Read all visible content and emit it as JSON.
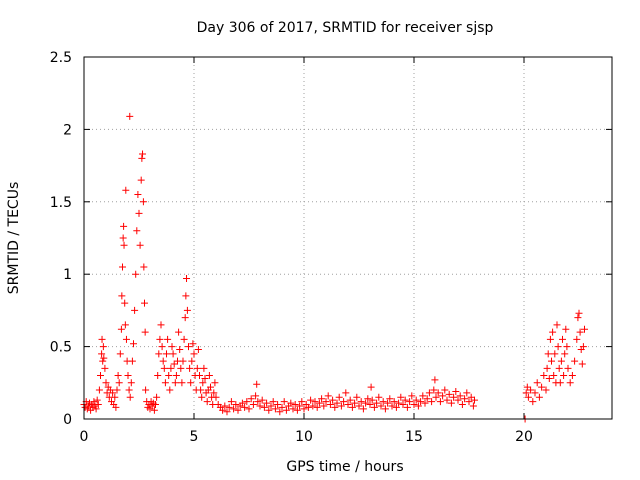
{
  "chart_data": {
    "type": "scatter",
    "title": "Day 306 of 2017, SRMTID for receiver sjsp",
    "xlabel": "GPS time / hours",
    "ylabel": "SRMTID / TECUs",
    "xlim": [
      0,
      24
    ],
    "ylim": [
      0,
      2.5
    ],
    "grid": true,
    "marker": "plus",
    "colors": {
      "series": "#ff0000",
      "grid": "#a0a0a0",
      "axis": "#000000"
    },
    "x_ticks": [
      {
        "value": 0,
        "label": "0"
      },
      {
        "value": 5,
        "label": "5"
      },
      {
        "value": 10,
        "label": "10"
      },
      {
        "value": 15,
        "label": "15"
      },
      {
        "value": 20,
        "label": "20"
      }
    ],
    "y_ticks": [
      {
        "value": 0,
        "label": "0"
      },
      {
        "value": 0.5,
        "label": "0.5"
      },
      {
        "value": 1,
        "label": "1"
      },
      {
        "value": 1.5,
        "label": "1.5"
      },
      {
        "value": 2,
        "label": "2"
      },
      {
        "value": 2.5,
        "label": "2.5"
      }
    ],
    "series": [
      {
        "name": "SRMTID",
        "points": [
          [
            0.0,
            0.1
          ],
          [
            0.05,
            0.08
          ],
          [
            0.1,
            0.12
          ],
          [
            0.15,
            0.07
          ],
          [
            0.2,
            0.09
          ],
          [
            0.25,
            0.11
          ],
          [
            0.3,
            0.06
          ],
          [
            0.35,
            0.1
          ],
          [
            0.4,
            0.08
          ],
          [
            0.45,
            0.12
          ],
          [
            0.5,
            0.09
          ],
          [
            0.55,
            0.07
          ],
          [
            0.6,
            0.13
          ],
          [
            0.65,
            0.1
          ],
          [
            0.7,
            0.2
          ],
          [
            0.75,
            0.3
          ],
          [
            0.8,
            0.45
          ],
          [
            0.82,
            0.55
          ],
          [
            0.85,
            0.4
          ],
          [
            0.88,
            0.5
          ],
          [
            0.9,
            0.42
          ],
          [
            0.95,
            0.35
          ],
          [
            1.0,
            0.25
          ],
          [
            1.05,
            0.18
          ],
          [
            1.1,
            0.22
          ],
          [
            1.15,
            0.15
          ],
          [
            1.2,
            0.2
          ],
          [
            1.25,
            0.12
          ],
          [
            1.3,
            0.18
          ],
          [
            1.35,
            0.1
          ],
          [
            1.4,
            0.15
          ],
          [
            1.45,
            0.08
          ],
          [
            1.5,
            0.2
          ],
          [
            1.55,
            0.3
          ],
          [
            1.6,
            0.25
          ],
          [
            1.65,
            0.45
          ],
          [
            1.7,
            0.62
          ],
          [
            1.72,
            0.85
          ],
          [
            1.75,
            1.05
          ],
          [
            1.78,
            1.25
          ],
          [
            1.8,
            1.33
          ],
          [
            1.82,
            1.2
          ],
          [
            1.85,
            0.8
          ],
          [
            1.88,
            0.65
          ],
          [
            1.9,
            1.58
          ],
          [
            1.93,
            0.55
          ],
          [
            1.96,
            0.4
          ],
          [
            2.0,
            0.3
          ],
          [
            2.05,
            0.2
          ],
          [
            2.08,
            2.09
          ],
          [
            2.1,
            0.15
          ],
          [
            2.15,
            0.25
          ],
          [
            2.2,
            0.4
          ],
          [
            2.25,
            0.52
          ],
          [
            2.3,
            0.75
          ],
          [
            2.35,
            1.0
          ],
          [
            2.4,
            1.3
          ],
          [
            2.45,
            1.55
          ],
          [
            2.5,
            1.42
          ],
          [
            2.55,
            1.2
          ],
          [
            2.6,
            1.65
          ],
          [
            2.63,
            1.8
          ],
          [
            2.66,
            1.83
          ],
          [
            2.7,
            1.5
          ],
          [
            2.72,
            1.05
          ],
          [
            2.75,
            0.8
          ],
          [
            2.78,
            0.6
          ],
          [
            2.8,
            0.2
          ],
          [
            2.85,
            0.12
          ],
          [
            2.9,
            0.08
          ],
          [
            2.95,
            0.1
          ],
          [
            3.0,
            0.07
          ],
          [
            3.05,
            0.12
          ],
          [
            3.1,
            0.09
          ],
          [
            3.15,
            0.11
          ],
          [
            3.2,
            0.06
          ],
          [
            3.25,
            0.1
          ],
          [
            3.3,
            0.15
          ],
          [
            3.35,
            0.3
          ],
          [
            3.4,
            0.45
          ],
          [
            3.45,
            0.55
          ],
          [
            3.5,
            0.65
          ],
          [
            3.55,
            0.5
          ],
          [
            3.6,
            0.4
          ],
          [
            3.65,
            0.35
          ],
          [
            3.7,
            0.25
          ],
          [
            3.75,
            0.45
          ],
          [
            3.8,
            0.55
          ],
          [
            3.85,
            0.3
          ],
          [
            3.9,
            0.2
          ],
          [
            3.95,
            0.35
          ],
          [
            4.0,
            0.5
          ],
          [
            4.05,
            0.45
          ],
          [
            4.1,
            0.38
          ],
          [
            4.15,
            0.25
          ],
          [
            4.2,
            0.3
          ],
          [
            4.25,
            0.4
          ],
          [
            4.3,
            0.6
          ],
          [
            4.35,
            0.48
          ],
          [
            4.4,
            0.35
          ],
          [
            4.45,
            0.25
          ],
          [
            4.5,
            0.4
          ],
          [
            4.55,
            0.55
          ],
          [
            4.6,
            0.7
          ],
          [
            4.63,
            0.85
          ],
          [
            4.66,
            0.97
          ],
          [
            4.7,
            0.75
          ],
          [
            4.75,
            0.5
          ],
          [
            4.8,
            0.35
          ],
          [
            4.85,
            0.25
          ],
          [
            4.9,
            0.4
          ],
          [
            4.95,
            0.52
          ],
          [
            5.0,
            0.45
          ],
          [
            5.05,
            0.3
          ],
          [
            5.1,
            0.2
          ],
          [
            5.15,
            0.35
          ],
          [
            5.2,
            0.48
          ],
          [
            5.25,
            0.3
          ],
          [
            5.3,
            0.2
          ],
          [
            5.35,
            0.15
          ],
          [
            5.4,
            0.25
          ],
          [
            5.45,
            0.35
          ],
          [
            5.5,
            0.28
          ],
          [
            5.55,
            0.18
          ],
          [
            5.6,
            0.12
          ],
          [
            5.65,
            0.2
          ],
          [
            5.7,
            0.3
          ],
          [
            5.75,
            0.22
          ],
          [
            5.8,
            0.15
          ],
          [
            5.85,
            0.1
          ],
          [
            5.9,
            0.18
          ],
          [
            5.95,
            0.25
          ],
          [
            6.0,
            0.15
          ],
          [
            6.1,
            0.1
          ],
          [
            6.2,
            0.08
          ],
          [
            6.3,
            0.06
          ],
          [
            6.4,
            0.09
          ],
          [
            6.5,
            0.05
          ],
          [
            6.6,
            0.08
          ],
          [
            6.7,
            0.12
          ],
          [
            6.8,
            0.07
          ],
          [
            6.9,
            0.1
          ],
          [
            7.0,
            0.06
          ],
          [
            7.1,
            0.09
          ],
          [
            7.2,
            0.11
          ],
          [
            7.3,
            0.08
          ],
          [
            7.4,
            0.12
          ],
          [
            7.5,
            0.07
          ],
          [
            7.6,
            0.14
          ],
          [
            7.7,
            0.1
          ],
          [
            7.8,
            0.16
          ],
          [
            7.85,
            0.24
          ],
          [
            7.9,
            0.12
          ],
          [
            8.0,
            0.09
          ],
          [
            8.1,
            0.13
          ],
          [
            8.2,
            0.08
          ],
          [
            8.3,
            0.11
          ],
          [
            8.4,
            0.06
          ],
          [
            8.5,
            0.09
          ],
          [
            8.6,
            0.12
          ],
          [
            8.7,
            0.07
          ],
          [
            8.8,
            0.1
          ],
          [
            8.9,
            0.05
          ],
          [
            9.0,
            0.08
          ],
          [
            9.1,
            0.12
          ],
          [
            9.2,
            0.06
          ],
          [
            9.3,
            0.09
          ],
          [
            9.4,
            0.11
          ],
          [
            9.5,
            0.07
          ],
          [
            9.6,
            0.1
          ],
          [
            9.7,
            0.06
          ],
          [
            9.8,
            0.09
          ],
          [
            9.9,
            0.12
          ],
          [
            10.0,
            0.07
          ],
          [
            10.1,
            0.1
          ],
          [
            10.2,
            0.08
          ],
          [
            10.3,
            0.13
          ],
          [
            10.4,
            0.09
          ],
          [
            10.5,
            0.12
          ],
          [
            10.6,
            0.08
          ],
          [
            10.7,
            0.11
          ],
          [
            10.8,
            0.14
          ],
          [
            10.9,
            0.09
          ],
          [
            11.0,
            0.12
          ],
          [
            11.1,
            0.16
          ],
          [
            11.2,
            0.1
          ],
          [
            11.3,
            0.13
          ],
          [
            11.4,
            0.08
          ],
          [
            11.5,
            0.11
          ],
          [
            11.6,
            0.15
          ],
          [
            11.7,
            0.09
          ],
          [
            11.8,
            0.12
          ],
          [
            11.9,
            0.18
          ],
          [
            12.0,
            0.1
          ],
          [
            12.1,
            0.13
          ],
          [
            12.2,
            0.08
          ],
          [
            12.3,
            0.11
          ],
          [
            12.4,
            0.15
          ],
          [
            12.5,
            0.09
          ],
          [
            12.6,
            0.12
          ],
          [
            12.7,
            0.07
          ],
          [
            12.8,
            0.11
          ],
          [
            12.9,
            0.14
          ],
          [
            13.0,
            0.1
          ],
          [
            13.05,
            0.22
          ],
          [
            13.1,
            0.13
          ],
          [
            13.2,
            0.08
          ],
          [
            13.3,
            0.11
          ],
          [
            13.4,
            0.15
          ],
          [
            13.5,
            0.09
          ],
          [
            13.6,
            0.12
          ],
          [
            13.7,
            0.07
          ],
          [
            13.8,
            0.11
          ],
          [
            13.9,
            0.14
          ],
          [
            14.0,
            0.09
          ],
          [
            14.1,
            0.12
          ],
          [
            14.2,
            0.08
          ],
          [
            14.3,
            0.11
          ],
          [
            14.4,
            0.15
          ],
          [
            14.5,
            0.1
          ],
          [
            14.6,
            0.13
          ],
          [
            14.7,
            0.08
          ],
          [
            14.8,
            0.12
          ],
          [
            14.9,
            0.16
          ],
          [
            15.0,
            0.1
          ],
          [
            15.1,
            0.13
          ],
          [
            15.2,
            0.09
          ],
          [
            15.3,
            0.12
          ],
          [
            15.4,
            0.16
          ],
          [
            15.5,
            0.11
          ],
          [
            15.6,
            0.14
          ],
          [
            15.7,
            0.18
          ],
          [
            15.8,
            0.12
          ],
          [
            15.9,
            0.2
          ],
          [
            15.95,
            0.27
          ],
          [
            16.0,
            0.15
          ],
          [
            16.1,
            0.18
          ],
          [
            16.2,
            0.12
          ],
          [
            16.3,
            0.16
          ],
          [
            16.4,
            0.2
          ],
          [
            16.5,
            0.13
          ],
          [
            16.6,
            0.17
          ],
          [
            16.7,
            0.11
          ],
          [
            16.8,
            0.15
          ],
          [
            16.9,
            0.19
          ],
          [
            17.0,
            0.13
          ],
          [
            17.1,
            0.16
          ],
          [
            17.2,
            0.1
          ],
          [
            17.3,
            0.14
          ],
          [
            17.4,
            0.18
          ],
          [
            17.5,
            0.12
          ],
          [
            17.6,
            0.15
          ],
          [
            17.7,
            0.09
          ],
          [
            17.75,
            0.13
          ],
          [
            20.05,
            0.0
          ],
          [
            20.1,
            0.18
          ],
          [
            20.15,
            0.22
          ],
          [
            20.2,
            0.15
          ],
          [
            20.3,
            0.2
          ],
          [
            20.4,
            0.12
          ],
          [
            20.5,
            0.18
          ],
          [
            20.6,
            0.25
          ],
          [
            20.7,
            0.15
          ],
          [
            20.8,
            0.22
          ],
          [
            20.9,
            0.3
          ],
          [
            21.0,
            0.2
          ],
          [
            21.05,
            0.35
          ],
          [
            21.1,
            0.45
          ],
          [
            21.15,
            0.28
          ],
          [
            21.2,
            0.55
          ],
          [
            21.25,
            0.4
          ],
          [
            21.3,
            0.6
          ],
          [
            21.35,
            0.3
          ],
          [
            21.4,
            0.45
          ],
          [
            21.45,
            0.25
          ],
          [
            21.5,
            0.65
          ],
          [
            21.55,
            0.5
          ],
          [
            21.6,
            0.35
          ],
          [
            21.65,
            0.25
          ],
          [
            21.7,
            0.4
          ],
          [
            21.75,
            0.55
          ],
          [
            21.8,
            0.3
          ],
          [
            21.85,
            0.45
          ],
          [
            21.9,
            0.62
          ],
          [
            21.95,
            0.5
          ],
          [
            22.0,
            0.35
          ],
          [
            22.1,
            0.25
          ],
          [
            22.2,
            0.3
          ],
          [
            22.3,
            0.4
          ],
          [
            22.4,
            0.55
          ],
          [
            22.45,
            0.7
          ],
          [
            22.5,
            0.73
          ],
          [
            22.55,
            0.6
          ],
          [
            22.6,
            0.48
          ],
          [
            22.65,
            0.38
          ],
          [
            22.7,
            0.5
          ],
          [
            22.75,
            0.62
          ]
        ]
      }
    ]
  }
}
